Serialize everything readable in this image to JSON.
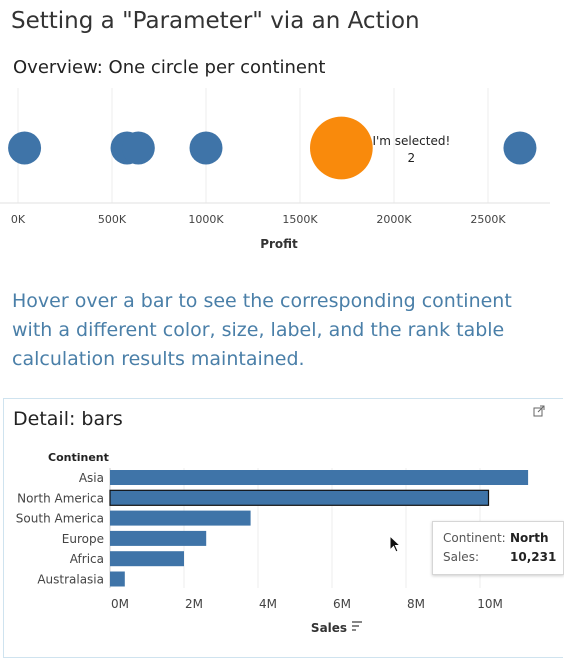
{
  "page_title": "Setting a \"Parameter\" via an Action",
  "overview": {
    "title": "Overview: One circle per continent",
    "xlabel": "Profit",
    "ticks": [
      "0K",
      "500K",
      "1000K",
      "1500K",
      "2000K",
      "2500K"
    ],
    "selected_label": "I'm selected!",
    "selected_rank": "2",
    "colors": {
      "normal": "#3f74a8",
      "selected": "#f98a0c"
    }
  },
  "hover_text": "Hover over a bar to see the corresponding continent with a different color, size, label, and the rank table calculation results maintained.",
  "detail": {
    "title": "Detail: bars",
    "popout_icon": "popout-icon",
    "tooltip": {
      "continent_label": "Continent:",
      "continent_value": "North",
      "sales_label": "Sales:",
      "sales_value": "10,231"
    }
  },
  "chart_data": [
    {
      "type": "scatter",
      "title": "Overview: One circle per continent",
      "xlabel": "Profit",
      "xlim": [
        -40000,
        2880000
      ],
      "x_ticks": [
        "0K",
        "500K",
        "1000K",
        "1500K",
        "2000K",
        "2500K"
      ],
      "points": [
        {
          "x": 35000,
          "size": 1,
          "selected": false
        },
        {
          "x": 580000,
          "size": 1,
          "selected": false
        },
        {
          "x": 640000,
          "size": 1,
          "selected": false
        },
        {
          "x": 1000000,
          "size": 1,
          "selected": false
        },
        {
          "x": 1720000,
          "size": 1.9,
          "selected": true
        },
        {
          "x": 2670000,
          "size": 1,
          "selected": false
        }
      ],
      "grid": true
    },
    {
      "type": "bar",
      "orientation": "horizontal",
      "title": "Detail: bars",
      "category_header": "Continent",
      "categories": [
        "Asia",
        "North America",
        "South America",
        "Europe",
        "Africa",
        "Australasia"
      ],
      "values": [
        11.3,
        10.23,
        3.8,
        2.6,
        2.0,
        0.4
      ],
      "highlighted": "North America",
      "xlabel": "Sales",
      "x_ticks": [
        "0M",
        "2M",
        "4M",
        "6M",
        "8M",
        "10M"
      ],
      "xlim": [
        0,
        11.5
      ],
      "grid": true
    }
  ]
}
